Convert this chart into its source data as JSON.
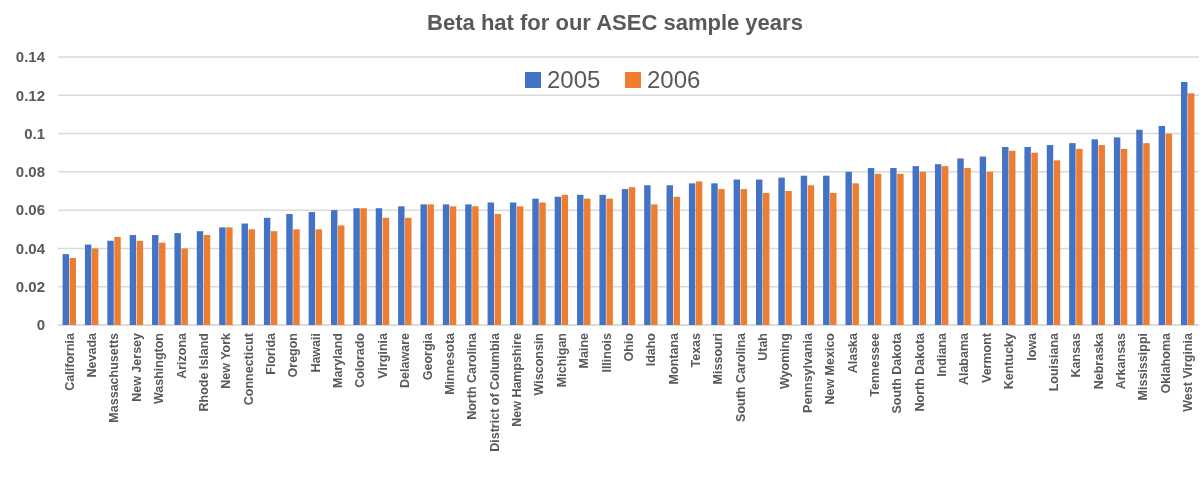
{
  "chart_data": {
    "type": "bar",
    "title": "Beta hat for our ASEC sample years",
    "categories": [
      "California",
      "Nevada",
      "Massachusetts",
      "New Jersey",
      "Washington",
      "Arizona",
      "Rhode Island",
      "New York",
      "Connecticut",
      "Florida",
      "Oregon",
      "Hawaii",
      "Maryland",
      "Colorado",
      "Virginia",
      "Delaware",
      "Georgia",
      "Minnesota",
      "North Carolina",
      "District of Columbia",
      "New Hampshire",
      "Wisconsin",
      "Michigan",
      "Maine",
      "Illinois",
      "Ohio",
      "Idaho",
      "Montana",
      "Texas",
      "Missouri",
      "South Carolina",
      "Utah",
      "Wyoming",
      "Pennsylvania",
      "New Mexico",
      "Alaska",
      "Tennessee",
      "South Dakota",
      "North Dakota",
      "Indiana",
      "Alabama",
      "Vermont",
      "Kentucky",
      "Iowa",
      "Louisiana",
      "Kansas",
      "Nebraska",
      "Arkansas",
      "Mississippi",
      "Oklahoma",
      "West Virginia"
    ],
    "series": [
      {
        "name": "2005",
        "color": "#4472c4",
        "values": [
          0.037,
          0.042,
          0.044,
          0.047,
          0.047,
          0.048,
          0.049,
          0.051,
          0.053,
          0.056,
          0.058,
          0.059,
          0.06,
          0.061,
          0.061,
          0.062,
          0.063,
          0.063,
          0.063,
          0.064,
          0.064,
          0.066,
          0.067,
          0.068,
          0.068,
          0.071,
          0.073,
          0.073,
          0.074,
          0.074,
          0.076,
          0.076,
          0.077,
          0.078,
          0.078,
          0.08,
          0.082,
          0.082,
          0.083,
          0.084,
          0.087,
          0.088,
          0.093,
          0.093,
          0.094,
          0.095,
          0.097,
          0.098,
          0.102,
          0.104,
          0.127
        ]
      },
      {
        "name": "2006",
        "color": "#ed7d31",
        "values": [
          0.035,
          0.04,
          0.046,
          0.044,
          0.043,
          0.04,
          0.047,
          0.051,
          0.05,
          0.049,
          0.05,
          0.05,
          0.052,
          0.061,
          0.056,
          0.056,
          0.063,
          0.062,
          0.062,
          0.058,
          0.062,
          0.064,
          0.068,
          0.066,
          0.066,
          0.072,
          0.063,
          0.067,
          0.075,
          0.071,
          0.071,
          0.069,
          0.07,
          0.073,
          0.069,
          0.074,
          0.079,
          0.079,
          0.08,
          0.083,
          0.082,
          0.08,
          0.091,
          0.09,
          0.086,
          0.092,
          0.094,
          0.092,
          0.095,
          0.1,
          0.121
        ]
      }
    ],
    "ylim": [
      0,
      0.14
    ],
    "yticks": [
      0,
      0.02,
      0.04,
      0.06,
      0.08,
      0.1,
      0.12,
      0.14
    ],
    "grid": "y",
    "legend": "top"
  }
}
